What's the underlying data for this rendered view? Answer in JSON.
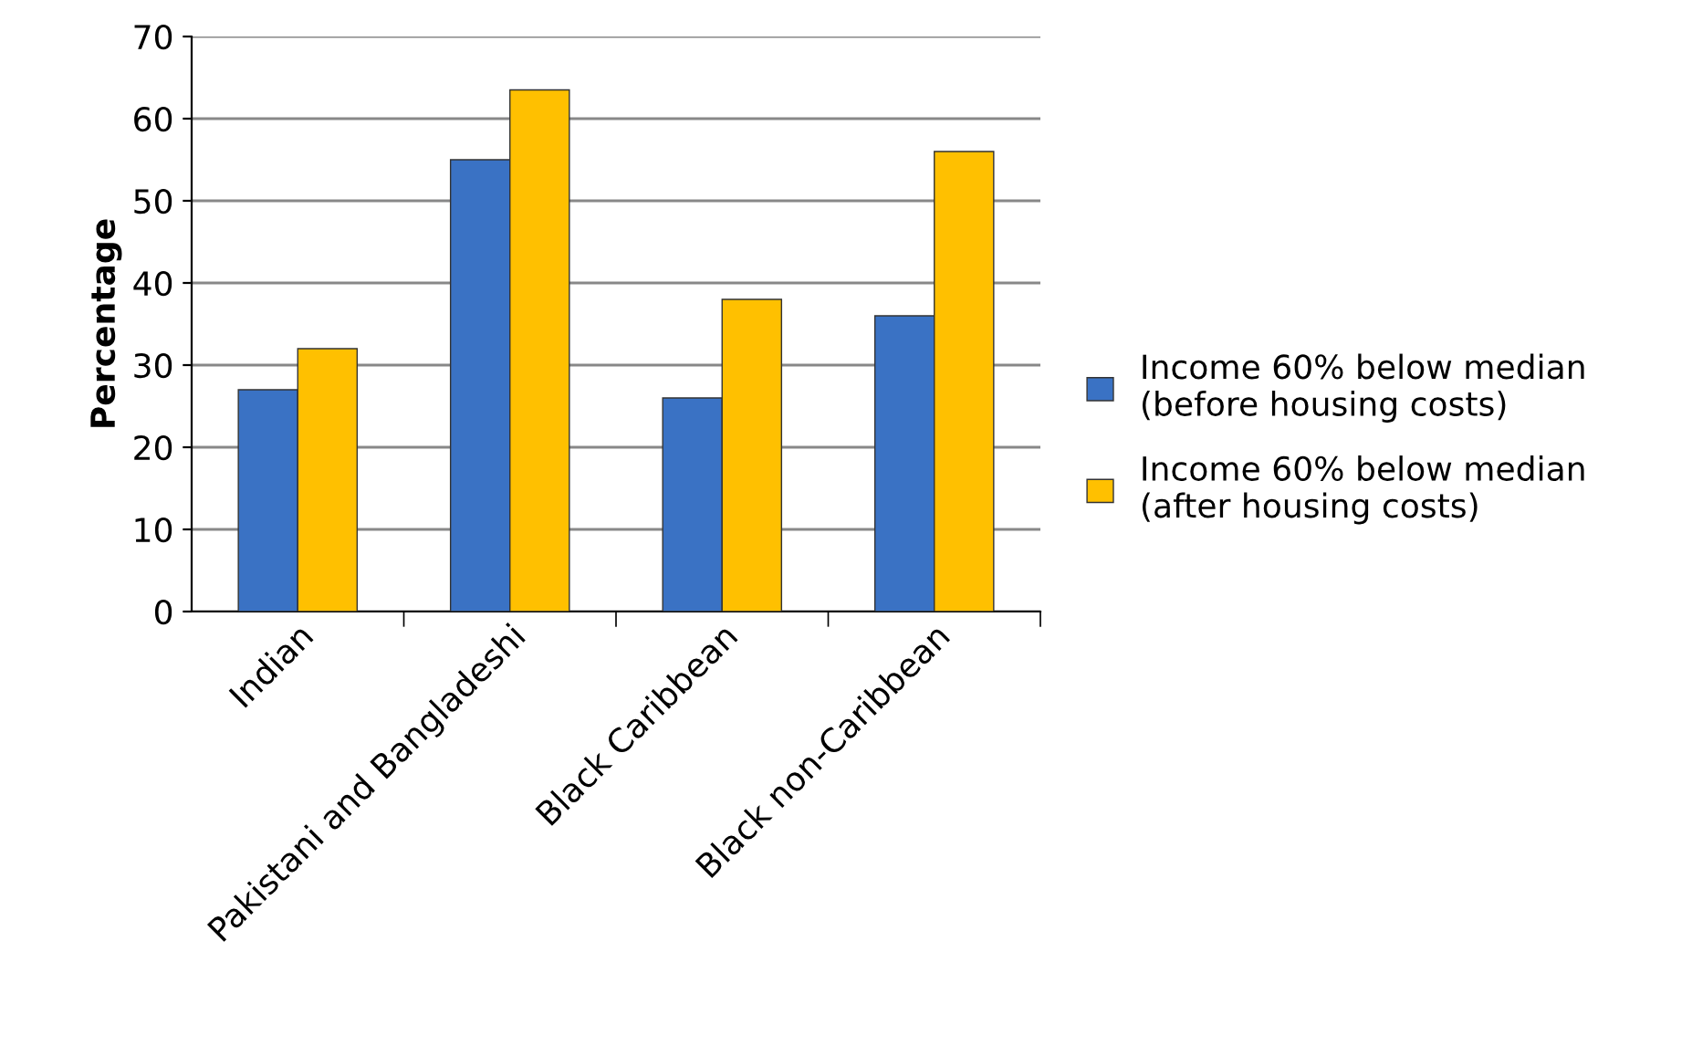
{
  "chart_data": {
    "type": "bar",
    "ylabel": "Percentage",
    "categories": [
      "Indian",
      "Pakistani and Bangladeshi",
      "Black Caribbean",
      "Black non-Caribbean"
    ],
    "series": [
      {
        "name": "Income 60% below median\n(before housing costs)",
        "color": "#3a72c4",
        "values": [
          27,
          55,
          26,
          36
        ]
      },
      {
        "name": "Income 60% below median\n(after housing costs)",
        "color": "#ffc000",
        "values": [
          32,
          63.5,
          38,
          56
        ]
      }
    ],
    "ylim": [
      0,
      70
    ],
    "yticks": [
      0,
      10,
      20,
      30,
      40,
      50,
      60,
      70
    ],
    "grid": "y",
    "legend": "right"
  }
}
